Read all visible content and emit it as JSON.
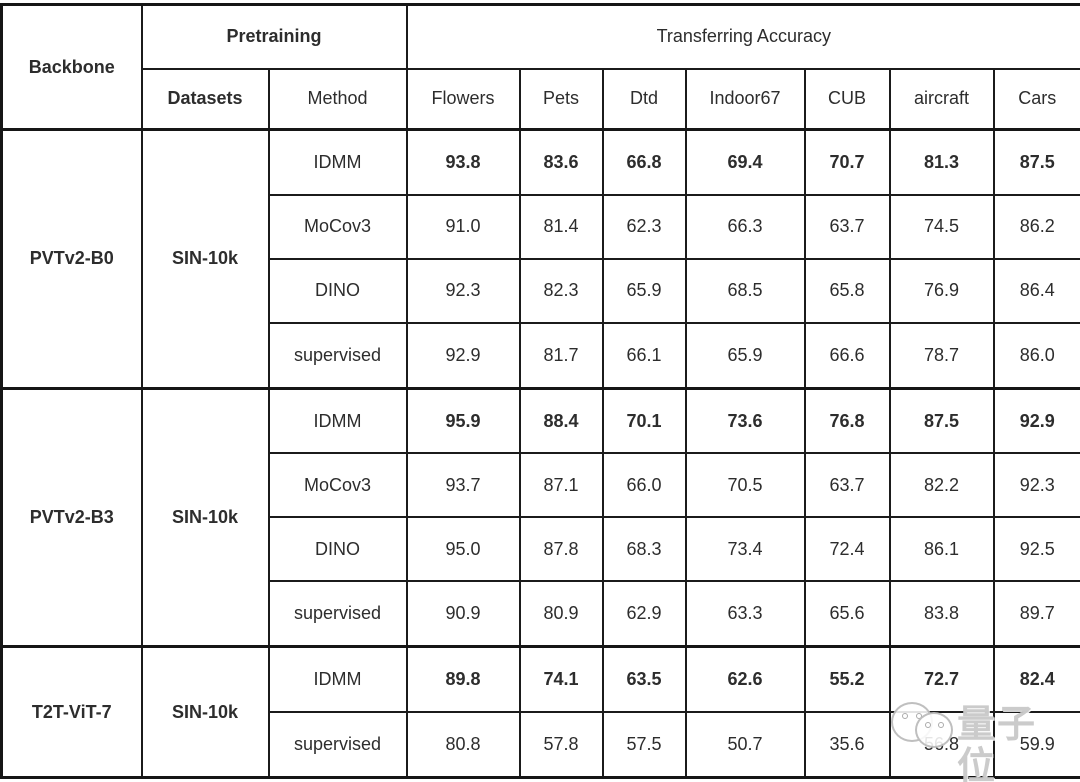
{
  "table": {
    "header": {
      "backbone": "Backbone",
      "pretraining": "Pretraining",
      "transferring_accuracy": "Transferring Accuracy",
      "datasets": "Datasets",
      "method": "Method",
      "columns": [
        "Flowers",
        "Pets",
        "Dtd",
        "Indoor67",
        "CUB",
        "aircraft",
        "Cars"
      ]
    },
    "blocks": [
      {
        "backbone": "PVTv2-B0",
        "dataset": "SIN-10k",
        "rows": [
          {
            "method": "IDMM",
            "bold": true,
            "values": [
              "93.8",
              "83.6",
              "66.8",
              "69.4",
              "70.7",
              "81.3",
              "87.5"
            ]
          },
          {
            "method": "MoCov3",
            "bold": false,
            "values": [
              "91.0",
              "81.4",
              "62.3",
              "66.3",
              "63.7",
              "74.5",
              "86.2"
            ]
          },
          {
            "method": "DINO",
            "bold": false,
            "values": [
              "92.3",
              "82.3",
              "65.9",
              "68.5",
              "65.8",
              "76.9",
              "86.4"
            ]
          },
          {
            "method": "supervised",
            "bold": false,
            "values": [
              "92.9",
              "81.7",
              "66.1",
              "65.9",
              "66.6",
              "78.7",
              "86.0"
            ]
          }
        ]
      },
      {
        "backbone": "PVTv2-B3",
        "dataset": "SIN-10k",
        "rows": [
          {
            "method": "IDMM",
            "bold": true,
            "values": [
              "95.9",
              "88.4",
              "70.1",
              "73.6",
              "76.8",
              "87.5",
              "92.9"
            ]
          },
          {
            "method": "MoCov3",
            "bold": false,
            "values": [
              "93.7",
              "87.1",
              "66.0",
              "70.5",
              "63.7",
              "82.2",
              "92.3"
            ]
          },
          {
            "method": "DINO",
            "bold": false,
            "values": [
              "95.0",
              "87.8",
              "68.3",
              "73.4",
              "72.4",
              "86.1",
              "92.5"
            ]
          },
          {
            "method": "supervised",
            "bold": false,
            "values": [
              "90.9",
              "80.9",
              "62.9",
              "63.3",
              "65.6",
              "83.8",
              "89.7"
            ]
          }
        ]
      },
      {
        "backbone": "T2T-ViT-7",
        "dataset": "SIN-10k",
        "rows": [
          {
            "method": "IDMM",
            "bold": true,
            "values": [
              "89.8",
              "74.1",
              "63.5",
              "62.6",
              "55.2",
              "72.7",
              "82.4"
            ]
          },
          {
            "method": "supervised",
            "bold": false,
            "values": [
              "80.8",
              "57.8",
              "57.5",
              "50.7",
              "35.6",
              "56.8",
              "59.9"
            ]
          }
        ]
      }
    ]
  },
  "watermark": {
    "text": "量子位",
    "icon": "wechat-chat-faces-icon"
  },
  "colors": {
    "text": "#2d2d2d",
    "border": "#1b1b1b",
    "background": "#ffffff",
    "watermark": "#c5c5c5"
  }
}
